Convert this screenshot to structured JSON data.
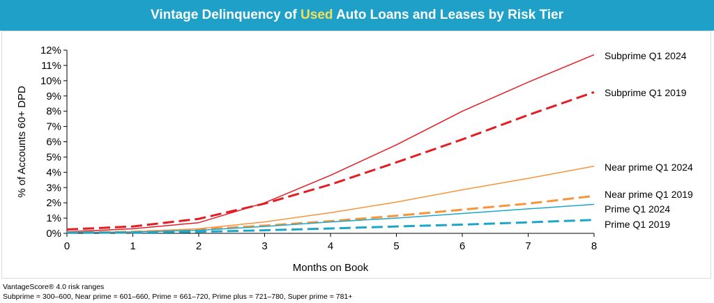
{
  "title": {
    "before": "Vintage Delinquency of ",
    "highlight": "Used",
    "after": " Auto Loans and Leases by Risk Tier"
  },
  "colors": {
    "title_bg": "#1ea0c8",
    "title_highlight": "#f5e05a",
    "subprime": "#e31c23",
    "near_prime": "#f7943b",
    "prime": "#1ba6c9"
  },
  "footnote": {
    "line1": "VantageScore® 4.0 risk ranges",
    "line2": "Subprime = 300–600, Near prime = 601–660, Prime = 661–720, Prime plus = 721–780, Super prime = 781+"
  },
  "chart_data": {
    "type": "line",
    "title": "Vintage Delinquency of Used Auto Loans and Leases by Risk Tier",
    "xlabel": "Months on Book",
    "ylabel": "% of Accounts 60+ DPD",
    "xlim": [
      0,
      8
    ],
    "ylim": [
      0,
      12
    ],
    "x": [
      0,
      1,
      2,
      3,
      4,
      5,
      6,
      7,
      8
    ],
    "x_ticks": [
      "0",
      "1",
      "2",
      "3",
      "4",
      "5",
      "6",
      "7",
      "8"
    ],
    "y_ticks": [
      "0%",
      "1%",
      "2%",
      "3%",
      "4%",
      "5%",
      "6%",
      "7%",
      "8%",
      "9%",
      "10%",
      "11%",
      "12%"
    ],
    "grid": false,
    "legend": "inline labels at line ends",
    "series": [
      {
        "name": "Subprime Q1 2024",
        "tier": "subprime",
        "dashed": false,
        "values": [
          0.1,
          0.3,
          0.7,
          2.0,
          3.8,
          5.8,
          8.0,
          9.9,
          11.7
        ]
      },
      {
        "name": "Subprime Q1 2019",
        "tier": "subprime",
        "dashed": true,
        "values": [
          0.25,
          0.45,
          0.95,
          1.95,
          3.2,
          4.65,
          6.15,
          7.75,
          9.25
        ]
      },
      {
        "name": "Near prime Q1 2024",
        "tier": "near_prime",
        "dashed": false,
        "values": [
          0.05,
          0.1,
          0.3,
          0.75,
          1.35,
          2.05,
          2.85,
          3.6,
          4.4
        ]
      },
      {
        "name": "Near prime Q1 2019",
        "tier": "near_prime",
        "dashed": true,
        "values": [
          0.05,
          0.1,
          0.25,
          0.5,
          0.8,
          1.15,
          1.55,
          1.95,
          2.45
        ]
      },
      {
        "name": "Prime Q1 2024",
        "tier": "prime",
        "dashed": false,
        "values": [
          0.05,
          0.08,
          0.2,
          0.45,
          0.75,
          1.0,
          1.3,
          1.6,
          1.9
        ]
      },
      {
        "name": "Prime Q1 2019",
        "tier": "prime",
        "dashed": true,
        "values": [
          0.03,
          0.05,
          0.1,
          0.2,
          0.32,
          0.45,
          0.57,
          0.72,
          0.88
        ]
      }
    ]
  }
}
